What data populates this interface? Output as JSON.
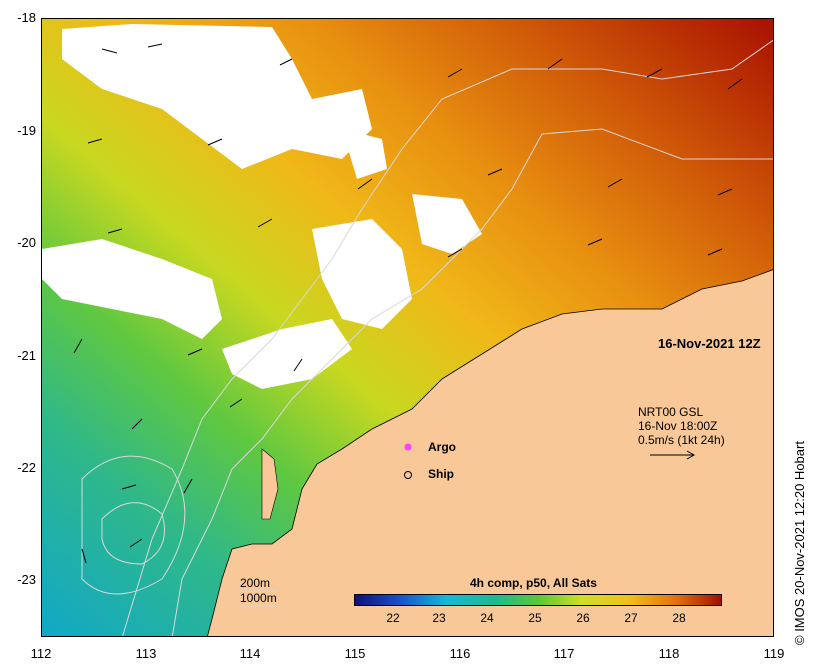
{
  "map": {
    "date_label": "16-Nov-2021 12Z",
    "credit": "© IMOS 20-Nov-2021 12:20 Hobart",
    "latitude_labels": [
      "-18",
      "-19",
      "-20",
      "-21",
      "-22",
      "-23"
    ],
    "longitude_labels": [
      "112",
      "113",
      "114",
      "115",
      "116",
      "117",
      "118",
      "119"
    ],
    "current_vectors": {
      "title": "NRT00 GSL",
      "time": "16-Nov 18:00Z",
      "scale_text": "0.5m/s (1kt 24h)"
    },
    "legend": {
      "argo_label": "Argo",
      "ship_label": "Ship"
    },
    "isobaths": {
      "shallow": "200m",
      "deep": "1000m"
    },
    "colorbar": {
      "title": "4h comp, p50, All Sats",
      "ticks": [
        "22",
        "23",
        "24",
        "25",
        "26",
        "27",
        "28"
      ]
    },
    "colors": {
      "land": "#f8c898",
      "warm": "#b01800",
      "cool": "#20b8c8"
    }
  }
}
